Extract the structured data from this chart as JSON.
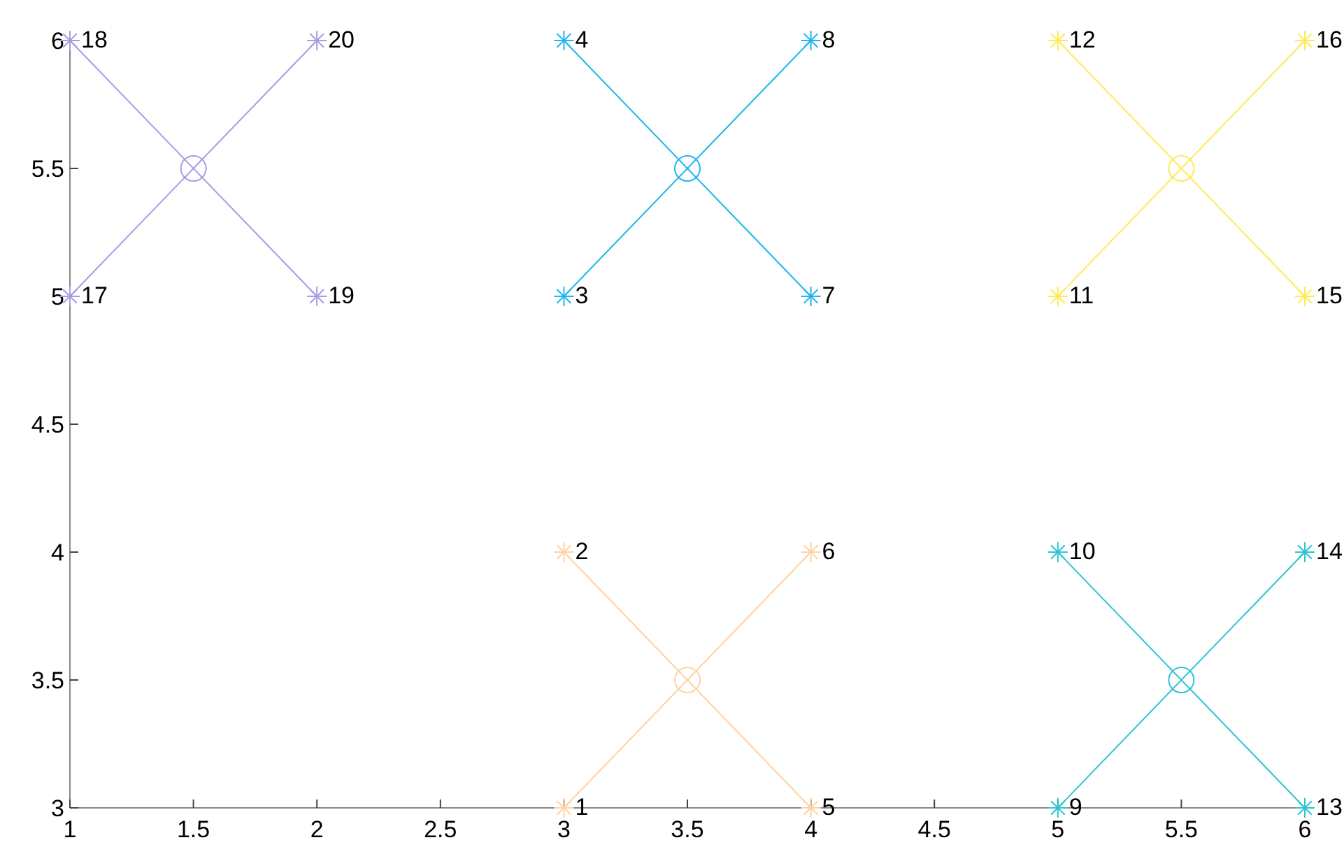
{
  "chart_data": {
    "type": "scatter",
    "xlim": [
      1,
      6
    ],
    "ylim": [
      3,
      6
    ],
    "xticks": [
      1,
      1.5,
      2,
      2.5,
      3,
      3.5,
      4,
      4.5,
      5,
      5.5,
      6
    ],
    "yticks": [
      3,
      3.5,
      4,
      4.5,
      5,
      5.5,
      6
    ],
    "grid": false,
    "series": [
      {
        "type": "line",
        "color": "#fdd3a4",
        "x": [
          3,
          4
        ],
        "values": [
          3,
          4
        ],
        "marker": "cross"
      },
      {
        "type": "line",
        "color": "#fdd3a4",
        "x": [
          3,
          4
        ],
        "values": [
          4,
          3
        ],
        "marker": "cross"
      },
      {
        "color": "#fdd3a4",
        "x": [
          3.5
        ],
        "values": [
          3.5
        ],
        "marker": "circle"
      },
      {
        "type": "line",
        "color": "#22b5f0",
        "x": [
          3,
          4
        ],
        "values": [
          5,
          6
        ],
        "marker": "cross"
      },
      {
        "type": "line",
        "color": "#22b5f0",
        "x": [
          3,
          4
        ],
        "values": [
          6,
          5
        ],
        "marker": "cross"
      },
      {
        "color": "#22b5f0",
        "x": [
          3.5
        ],
        "values": [
          5.5
        ],
        "marker": "circle"
      },
      {
        "type": "line",
        "color": "#2ec4d2",
        "x": [
          5,
          6
        ],
        "values": [
          3,
          4
        ],
        "marker": "cross"
      },
      {
        "type": "line",
        "color": "#2ec4d2",
        "x": [
          5,
          6
        ],
        "values": [
          4,
          3
        ],
        "marker": "cross"
      },
      {
        "color": "#2ec4d2",
        "x": [
          5.5
        ],
        "values": [
          3.5
        ],
        "marker": "circle"
      },
      {
        "type": "line",
        "color": "#ffe955",
        "x": [
          5,
          6
        ],
        "values": [
          5,
          6
        ],
        "marker": "cross"
      },
      {
        "type": "line",
        "color": "#ffe955",
        "x": [
          5,
          6
        ],
        "values": [
          6,
          5
        ],
        "marker": "cross"
      },
      {
        "color": "#ffe955",
        "x": [
          5.5
        ],
        "values": [
          5.5
        ],
        "marker": "circle"
      },
      {
        "type": "line",
        "color": "#a99de0",
        "x": [
          1,
          2
        ],
        "values": [
          5,
          6
        ],
        "marker": "cross"
      },
      {
        "type": "line",
        "color": "#a99de0",
        "x": [
          1,
          2
        ],
        "values": [
          6,
          5
        ],
        "marker": "cross"
      },
      {
        "color": "#a99de0",
        "x": [
          1.5
        ],
        "values": [
          5.5
        ],
        "marker": "circle"
      }
    ],
    "annotations": [
      {
        "text": "1",
        "x": 3,
        "y": 3
      },
      {
        "text": "2",
        "x": 3,
        "y": 4
      },
      {
        "text": "3",
        "x": 3,
        "y": 5
      },
      {
        "text": "4",
        "x": 3,
        "y": 6
      },
      {
        "text": "5",
        "x": 4,
        "y": 3
      },
      {
        "text": "6",
        "x": 4,
        "y": 4
      },
      {
        "text": "7",
        "x": 4,
        "y": 5
      },
      {
        "text": "8",
        "x": 4,
        "y": 6
      },
      {
        "text": "9",
        "x": 5,
        "y": 3
      },
      {
        "text": "10",
        "x": 5,
        "y": 4
      },
      {
        "text": "11",
        "x": 5,
        "y": 5
      },
      {
        "text": "12",
        "x": 5,
        "y": 6
      },
      {
        "text": "13",
        "x": 6,
        "y": 3
      },
      {
        "text": "14",
        "x": 6,
        "y": 4
      },
      {
        "text": "15",
        "x": 6,
        "y": 5
      },
      {
        "text": "16",
        "x": 6,
        "y": 6
      },
      {
        "text": "17",
        "x": 1,
        "y": 5
      },
      {
        "text": "18",
        "x": 1,
        "y": 6
      },
      {
        "text": "19",
        "x": 2,
        "y": 5
      },
      {
        "text": "20",
        "x": 2,
        "y": 6
      }
    ]
  }
}
